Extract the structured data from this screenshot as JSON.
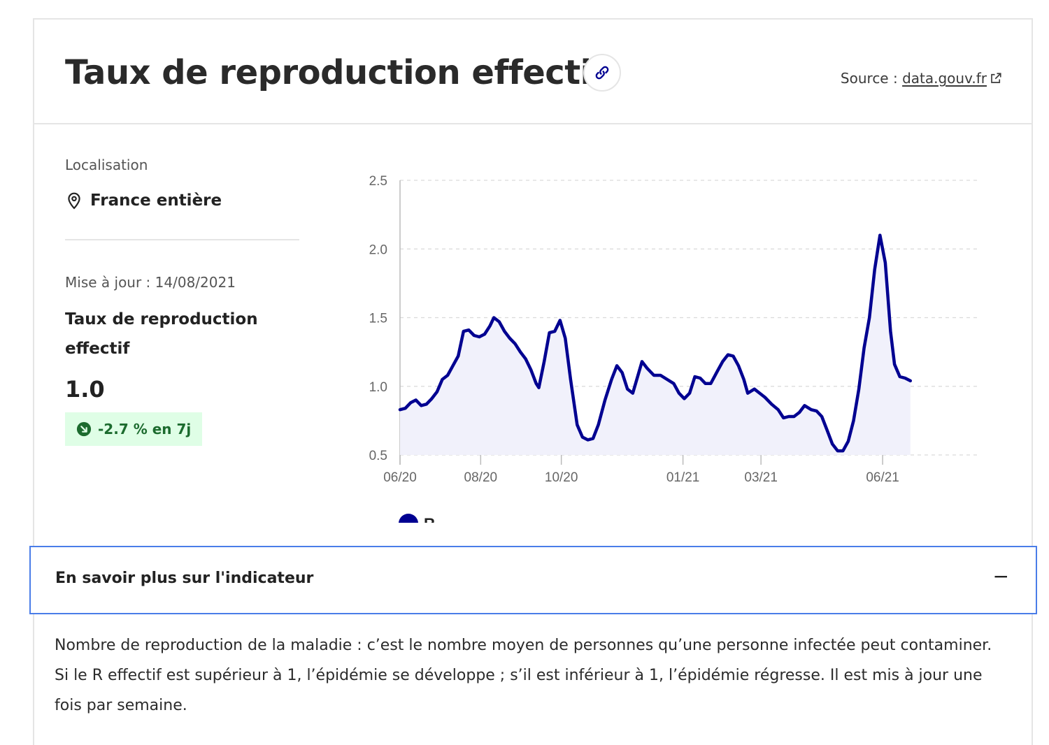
{
  "header": {
    "title": "Taux de reproduction effectif",
    "source_prefix": "Source : ",
    "source_link": "data.gouv.fr"
  },
  "sidebar": {
    "location_label": "Localisation",
    "location_value": "France entière",
    "update_text": "Mise à jour : 14/08/2021",
    "indicator_name": "Taux de reproduction effectif",
    "indicator_value": "1.0",
    "trend_text": "-2.7 % en 7j"
  },
  "accordion": {
    "label": "En savoir plus sur l'indicateur",
    "toggle": "−"
  },
  "description": "Nombre de reproduction de la maladie : c’est le nombre moyen de personnes qu’une personne infectée peut contaminer. Si le R effectif est supérieur à 1, l’épidémie se développe ; s’il est inférieur à 1, l’épidémie régresse. Il est mis à jour une fois par semaine.",
  "colors": {
    "series": "#000091",
    "trend_bg": "#dffee6",
    "trend_fg": "#1c6b2e",
    "accordion_border": "#4a7de8"
  },
  "chart_data": {
    "type": "area",
    "title": "",
    "xlabel": "",
    "ylabel": "",
    "ylim": [
      0.5,
      2.5
    ],
    "yticks": [
      "0.5",
      "1.0",
      "1.5",
      "2.0",
      "2.5"
    ],
    "xlim": [
      "2020-06-01",
      "2021-08-14"
    ],
    "xticks": [
      {
        "date": "2020-06-01",
        "label": "06/20"
      },
      {
        "date": "2020-08-01",
        "label": "08/20"
      },
      {
        "date": "2020-10-01",
        "label": "10/20"
      },
      {
        "date": "2021-01-01",
        "label": "01/21"
      },
      {
        "date": "2021-03-01",
        "label": "03/21"
      },
      {
        "date": "2021-06-01",
        "label": "06/21"
      }
    ],
    "grid": "horizontal-dashed",
    "legend_position": "bottom-left",
    "series": [
      {
        "name": "R",
        "points": [
          [
            "2020-06-01",
            0.83
          ],
          [
            "2020-06-05",
            0.84
          ],
          [
            "2020-06-09",
            0.88
          ],
          [
            "2020-06-13",
            0.9
          ],
          [
            "2020-06-17",
            0.86
          ],
          [
            "2020-06-21",
            0.87
          ],
          [
            "2020-06-25",
            0.91
          ],
          [
            "2020-06-29",
            0.96
          ],
          [
            "2020-07-03",
            1.05
          ],
          [
            "2020-07-07",
            1.08
          ],
          [
            "2020-07-11",
            1.15
          ],
          [
            "2020-07-15",
            1.22
          ],
          [
            "2020-07-19",
            1.4
          ],
          [
            "2020-07-23",
            1.41
          ],
          [
            "2020-07-27",
            1.37
          ],
          [
            "2020-07-31",
            1.36
          ],
          [
            "2020-08-04",
            1.38
          ],
          [
            "2020-08-08",
            1.44
          ],
          [
            "2020-08-11",
            1.5
          ],
          [
            "2020-08-15",
            1.47
          ],
          [
            "2020-08-19",
            1.4
          ],
          [
            "2020-08-23",
            1.35
          ],
          [
            "2020-08-27",
            1.31
          ],
          [
            "2020-08-31",
            1.25
          ],
          [
            "2020-09-04",
            1.2
          ],
          [
            "2020-09-08",
            1.12
          ],
          [
            "2020-09-12",
            1.02
          ],
          [
            "2020-09-14",
            0.99
          ],
          [
            "2020-09-18",
            1.18
          ],
          [
            "2020-09-22",
            1.39
          ],
          [
            "2020-09-26",
            1.4
          ],
          [
            "2020-09-30",
            1.48
          ],
          [
            "2020-10-04",
            1.35
          ],
          [
            "2020-10-08",
            1.05
          ],
          [
            "2020-10-13",
            0.72
          ],
          [
            "2020-10-17",
            0.63
          ],
          [
            "2020-10-21",
            0.61
          ],
          [
            "2020-10-25",
            0.62
          ],
          [
            "2020-10-29",
            0.72
          ],
          [
            "2020-11-03",
            0.9
          ],
          [
            "2020-11-08",
            1.05
          ],
          [
            "2020-11-12",
            1.15
          ],
          [
            "2020-11-16",
            1.1
          ],
          [
            "2020-11-20",
            0.98
          ],
          [
            "2020-11-24",
            0.95
          ],
          [
            "2020-11-28",
            1.08
          ],
          [
            "2020-12-01",
            1.18
          ],
          [
            "2020-12-05",
            1.13
          ],
          [
            "2020-12-10",
            1.08
          ],
          [
            "2020-12-15",
            1.08
          ],
          [
            "2020-12-20",
            1.05
          ],
          [
            "2020-12-25",
            1.02
          ],
          [
            "2020-12-29",
            0.95
          ],
          [
            "2021-01-02",
            0.91
          ],
          [
            "2021-01-06",
            0.95
          ],
          [
            "2021-01-10",
            1.07
          ],
          [
            "2021-01-14",
            1.06
          ],
          [
            "2021-01-18",
            1.02
          ],
          [
            "2021-01-22",
            1.02
          ],
          [
            "2021-01-27",
            1.11
          ],
          [
            "2021-01-31",
            1.18
          ],
          [
            "2021-02-04",
            1.23
          ],
          [
            "2021-02-08",
            1.22
          ],
          [
            "2021-02-12",
            1.15
          ],
          [
            "2021-02-16",
            1.05
          ],
          [
            "2021-02-19",
            0.95
          ],
          [
            "2021-02-24",
            0.98
          ],
          [
            "2021-02-28",
            0.95
          ],
          [
            "2021-03-04",
            0.92
          ],
          [
            "2021-03-09",
            0.87
          ],
          [
            "2021-03-14",
            0.83
          ],
          [
            "2021-03-18",
            0.77
          ],
          [
            "2021-03-22",
            0.78
          ],
          [
            "2021-03-26",
            0.78
          ],
          [
            "2021-03-30",
            0.81
          ],
          [
            "2021-04-03",
            0.86
          ],
          [
            "2021-04-08",
            0.83
          ],
          [
            "2021-04-12",
            0.82
          ],
          [
            "2021-04-16",
            0.78
          ],
          [
            "2021-04-20",
            0.68
          ],
          [
            "2021-04-24",
            0.58
          ],
          [
            "2021-04-28",
            0.53
          ],
          [
            "2021-05-02",
            0.53
          ],
          [
            "2021-05-06",
            0.6
          ],
          [
            "2021-05-10",
            0.75
          ],
          [
            "2021-05-14",
            0.98
          ],
          [
            "2021-05-18",
            1.28
          ],
          [
            "2021-05-22",
            1.5
          ],
          [
            "2021-05-26",
            1.85
          ],
          [
            "2021-05-30",
            2.1
          ],
          [
            "2021-06-03",
            1.9
          ],
          [
            "2021-06-07",
            1.4
          ],
          [
            "2021-06-10",
            1.16
          ],
          [
            "2021-06-14",
            1.07
          ],
          [
            "2021-06-18",
            1.06
          ],
          [
            "2021-06-22",
            1.04
          ]
        ]
      }
    ]
  }
}
